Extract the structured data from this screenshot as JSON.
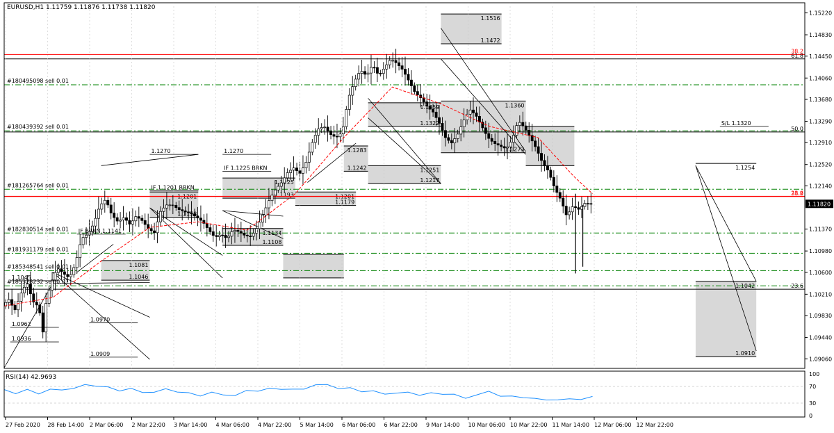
{
  "colors": {
    "bg": "#ffffff",
    "axis": "#000000",
    "candle": "#000000",
    "fib": "#ff0000",
    "order": "#008000",
    "sma": "#ff0000",
    "rsi": "#1e90ff",
    "box": "#d8d8d8",
    "price_tag_bg": "#000000",
    "price_tag_fg": "#ffffff"
  },
  "chart_data": {
    "type": "candlestick",
    "symbol": "EURUSD,H1",
    "ohlc": {
      "open": "1.11759",
      "high": "1.11876",
      "low": "1.11738",
      "close": "1.11820"
    },
    "header_text": "EURUSD,H1  1.11759 1.11876 1.11738 1.11820",
    "current_price": "1.11820",
    "ylim": [
      1.0889,
      1.154
    ],
    "price_ticks": [
      "1.15220",
      "1.14830",
      "1.14450",
      "1.14060",
      "1.13680",
      "1.13290",
      "1.12910",
      "1.12520",
      "1.12140",
      "1.11750",
      "1.11370",
      "1.10980",
      "1.10600",
      "1.10210",
      "1.09830",
      "1.09440",
      "1.09060"
    ],
    "time_ticks": [
      "27 Feb 2020",
      "28 Feb 14:00",
      "2 Mar 06:00",
      "2 Mar 22:00",
      "3 Mar 14:00",
      "4 Mar 06:00",
      "4 Mar 22:00",
      "5 Mar 14:00",
      "6 Mar 06:00",
      "6 Mar 22:00",
      "9 Mar 14:00",
      "10 Mar 06:00",
      "10 Mar 22:00",
      "11 Mar 14:00",
      "12 Mar 06:00",
      "12 Mar 22:00"
    ],
    "price_path": [
      [
        0,
        1.1
      ],
      [
        0.5,
        1.1012
      ],
      [
        1,
        1.0992
      ],
      [
        1.5,
        1.1022
      ],
      [
        2,
        1.1042
      ],
      [
        2.5,
        1.1008
      ],
      [
        3,
        1.0998
      ],
      [
        3.3,
        1.095
      ],
      [
        3.6,
        1.101
      ],
      [
        4,
        1.1042
      ],
      [
        4.5,
        1.1068
      ],
      [
        5,
        1.1058
      ],
      [
        5.5,
        1.105
      ],
      [
        6,
        1.1075
      ],
      [
        6.5,
        1.112
      ],
      [
        7,
        1.1128
      ],
      [
        7.5,
        1.1146
      ],
      [
        8,
        1.1178
      ],
      [
        8.5,
        1.119
      ],
      [
        9,
        1.1162
      ],
      [
        9.5,
        1.115
      ],
      [
        10,
        1.1158
      ],
      [
        10.5,
        1.1145
      ],
      [
        11,
        1.116
      ],
      [
        11.5,
        1.1152
      ],
      [
        12,
        1.1138
      ],
      [
        12.5,
        1.113
      ],
      [
        13,
        1.1168
      ],
      [
        13.5,
        1.118
      ],
      [
        14,
        1.118
      ],
      [
        14.5,
        1.1172
      ],
      [
        15,
        1.1168
      ],
      [
        15.5,
        1.1165
      ],
      [
        16,
        1.1158
      ],
      [
        16.5,
        1.115
      ],
      [
        17,
        1.1135
      ],
      [
        17.5,
        1.1122
      ],
      [
        18,
        1.1128
      ],
      [
        18.5,
        1.112
      ],
      [
        19,
        1.1136
      ],
      [
        19.5,
        1.1132
      ],
      [
        20,
        1.1125
      ],
      [
        20.5,
        1.1124
      ],
      [
        21,
        1.114
      ],
      [
        21.5,
        1.1165
      ],
      [
        22,
        1.119
      ],
      [
        22.5,
        1.1208
      ],
      [
        23,
        1.122
      ],
      [
        23.5,
        1.1238
      ],
      [
        24,
        1.1246
      ],
      [
        24.5,
        1.1236
      ],
      [
        25,
        1.1255
      ],
      [
        25.5,
        1.129
      ],
      [
        26,
        1.1315
      ],
      [
        26.5,
        1.132
      ],
      [
        27,
        1.1306
      ],
      [
        27.5,
        1.13
      ],
      [
        28,
        1.131
      ],
      [
        28.5,
        1.137
      ],
      [
        29,
        1.14
      ],
      [
        29.5,
        1.142
      ],
      [
        30,
        1.141
      ],
      [
        30.5,
        1.143
      ],
      [
        31,
        1.141
      ],
      [
        31.5,
        1.1425
      ],
      [
        32,
        1.144
      ],
      [
        32.5,
        1.1432
      ],
      [
        33,
        1.142
      ],
      [
        33.5,
        1.14
      ],
      [
        34,
        1.138
      ],
      [
        34.5,
        1.137
      ],
      [
        35,
        1.1355
      ],
      [
        35.5,
        1.1345
      ],
      [
        36,
        1.1325
      ],
      [
        36.5,
        1.13
      ],
      [
        37,
        1.129
      ],
      [
        37.5,
        1.1305
      ],
      [
        38,
        1.133
      ],
      [
        38.5,
        1.135
      ],
      [
        39,
        1.134
      ],
      [
        39.5,
        1.132
      ],
      [
        40,
        1.13
      ],
      [
        40.5,
        1.129
      ],
      [
        41,
        1.1285
      ],
      [
        41.5,
        1.128
      ],
      [
        42,
        1.1296
      ],
      [
        42.5,
        1.133
      ],
      [
        43,
        1.1318
      ],
      [
        43.5,
        1.13
      ],
      [
        44,
        1.128
      ],
      [
        44.5,
        1.1255
      ],
      [
        45,
        1.124
      ],
      [
        45.5,
        1.121
      ],
      [
        46,
        1.119
      ],
      [
        46.5,
        1.116
      ],
      [
        47,
        1.1178
      ],
      [
        47.5,
        1.1172
      ],
      [
        48,
        1.1183
      ],
      [
        48.5,
        1.1182
      ]
    ],
    "candle_highs": [
      1.1022,
      1.103,
      1.104,
      1.105,
      1.1055,
      1.108,
      1.111,
      1.114,
      1.117,
      1.119,
      1.119,
      1.117,
      1.118,
      1.1215,
      1.1195,
      1.119,
      1.118,
      1.1165,
      1.115,
      1.115,
      1.1135,
      1.1165,
      1.12,
      1.122,
      1.125,
      1.126,
      1.128,
      1.131,
      1.1335,
      1.138,
      1.142,
      1.145,
      1.147,
      1.148,
      1.1495,
      1.146,
      1.142,
      1.14,
      1.137,
      1.134,
      1.132,
      1.133,
      1.136,
      1.135,
      1.131,
      1.13,
      1.132,
      1.1335,
      1.13,
      1.127,
      1.124,
      1.1205,
      1.1195
    ],
    "candle_lows": [
      1.0985,
      1.0975,
      1.096,
      1.095,
      1.099,
      1.102,
      1.104,
      1.108,
      1.111,
      1.113,
      1.112,
      1.111,
      1.112,
      1.115,
      1.114,
      1.112,
      1.1105,
      1.11,
      1.1105,
      1.111,
      1.1115,
      1.113,
      1.116,
      1.1185,
      1.12,
      1.122,
      1.124,
      1.1265,
      1.129,
      1.133,
      1.137,
      1.138,
      1.1385,
      1.138,
      1.136,
      1.132,
      1.129,
      1.1265,
      1.126,
      1.127,
      1.1285,
      1.1275,
      1.129,
      1.127,
      1.125,
      1.125,
      1.1265,
      1.1255,
      1.121,
      1.115,
      1.106,
      1.106,
      1.115
    ],
    "sma_path": [
      [
        0,
        1.1
      ],
      [
        4,
        1.1015
      ],
      [
        8,
        1.108
      ],
      [
        12,
        1.114
      ],
      [
        16,
        1.115
      ],
      [
        20,
        1.1135
      ],
      [
        24,
        1.12
      ],
      [
        28,
        1.13
      ],
      [
        32,
        1.139
      ],
      [
        36,
        1.136
      ],
      [
        40,
        1.132
      ],
      [
        44,
        1.13
      ],
      [
        47,
        1.123
      ],
      [
        48.5,
        1.12
      ]
    ],
    "fib_lines": [
      {
        "price": 1.1448,
        "label": "38.2",
        "side": "right",
        "color": "red"
      },
      {
        "price": 1.11955,
        "label": "23.6",
        "side": "right",
        "color": "red"
      },
      {
        "price": 1.1195,
        "label": "38.2",
        "side": "right",
        "color": "red"
      },
      {
        "price": 1.144,
        "label": "61.8",
        "side": "right",
        "color": "black"
      },
      {
        "price": 1.131,
        "label": "50.0",
        "side": "right",
        "color": "black"
      },
      {
        "price": 1.103,
        "label": "23.6",
        "side": "right",
        "color": "black"
      }
    ],
    "order_lines": [
      {
        "price": 1.1394,
        "label": "#180495098 sell 0.01"
      },
      {
        "price": 1.1312,
        "label": "#180439392 sell 0.01"
      },
      {
        "price": 1.1208,
        "label": "#181265764 sell 0.01"
      },
      {
        "price": 1.113,
        "label": "#182830514 sell 0.01"
      },
      {
        "price": 1.1094,
        "label": "#181931179 sell 0.01"
      },
      {
        "price": 1.1063,
        "label": "#185348541 sell 0.01"
      },
      {
        "price": 1.1036,
        "label": "#185328232 sell 0.01"
      }
    ],
    "zones": [
      {
        "label": "1.1516",
        "label2": "1.1472",
        "t0": 36,
        "t1": 41,
        "p0": 1.152,
        "p1": 1.1467
      },
      {
        "label": "1.1359",
        "label2": "1.1322",
        "t0": 30,
        "t1": 36,
        "p0": 1.1362,
        "p1": 1.132
      },
      {
        "label": "1.1360",
        "label2": "1.1273",
        "t0": 36,
        "t1": 43,
        "p0": 1.1365,
        "p1": 1.1273
      },
      {
        "label": "",
        "label2": "",
        "t0": 43,
        "t1": 47,
        "p0": 1.132,
        "p1": 1.125
      },
      {
        "label": "1.1283",
        "label2": "1.1242",
        "t0": 28,
        "t1": 30,
        "p0": 1.1285,
        "p1": 1.124
      },
      {
        "label": "1.1251",
        "label2": "1.1217",
        "t0": 30,
        "t1": 36,
        "p0": 1.125,
        "p1": 1.1218
      },
      {
        "label": "1.1225",
        "label2": "1.1193",
        "t0": 18,
        "t1": 24,
        "p0": 1.1228,
        "p1": 1.1192
      },
      {
        "label": "1.1201",
        "label2": "1.1179",
        "t0": 24,
        "t1": 29,
        "p0": 1.1203,
        "p1": 1.1179
      },
      {
        "label": "1.1201",
        "label2": "1.1158",
        "t0": 12,
        "t1": 16,
        "p0": 1.1203,
        "p1": 1.1158
      },
      {
        "label": "1.1134",
        "label2": "1.1108",
        "t0": 18,
        "t1": 23,
        "p0": 1.1138,
        "p1": 1.1108
      },
      {
        "label": "",
        "label2": "",
        "t0": 23,
        "t1": 28,
        "p0": 1.1092,
        "p1": 1.105
      },
      {
        "label": "1.1042",
        "label2": "1.0910",
        "t0": 57,
        "t1": 62,
        "p0": 1.1044,
        "p1": 1.091
      },
      {
        "label": "1.1254",
        "label2": "",
        "t0": 57,
        "t1": 62,
        "p0": 1.1254,
        "p1": 1.1254
      },
      {
        "label": "1.1081",
        "label2": "1.1046",
        "t0": 8,
        "t1": 12,
        "p0": 1.1081,
        "p1": 1.1046
      }
    ],
    "level_labels": [
      {
        "text": "1.1270",
        "t": 12,
        "p": 1.127
      },
      {
        "text": "1.1270",
        "t": 18,
        "p": 1.127
      },
      {
        "text": "1.1045",
        "t": 0.5,
        "p": 1.1045
      },
      {
        "text": "1.0970",
        "t": 7,
        "p": 1.097
      },
      {
        "text": "1.0962",
        "t": 0.5,
        "p": 1.0962
      },
      {
        "text": "1.0936",
        "t": 0.5,
        "p": 1.0936
      },
      {
        "text": "1.0909",
        "t": 7,
        "p": 1.0909
      },
      {
        "text": "S/L 1.1320",
        "t": 59,
        "p": 1.132
      },
      {
        "text": "IF 1.1201 BRKN",
        "t": 12,
        "p": 1.1205
      },
      {
        "text": "IF 1.1225 BRKN",
        "t": 18,
        "p": 1.124
      },
      {
        "text": "IF BRKN 1.1141",
        "t": 6,
        "p": 1.1128
      }
    ],
    "rsi": {
      "label": "RSI(14) 42.9693",
      "ticks": [
        "100",
        "70",
        "30",
        "0"
      ],
      "values": [
        58,
        54,
        60,
        55,
        62,
        66,
        65,
        70,
        72,
        66,
        62,
        64,
        60,
        56,
        60,
        58,
        52,
        50,
        55,
        54,
        48,
        56,
        60,
        63,
        66,
        62,
        68,
        74,
        70,
        66,
        64,
        60,
        58,
        56,
        54,
        52,
        50,
        52,
        54,
        50,
        46,
        50,
        54,
        48,
        44,
        46,
        40,
        42,
        38,
        36,
        40,
        43
      ]
    }
  }
}
